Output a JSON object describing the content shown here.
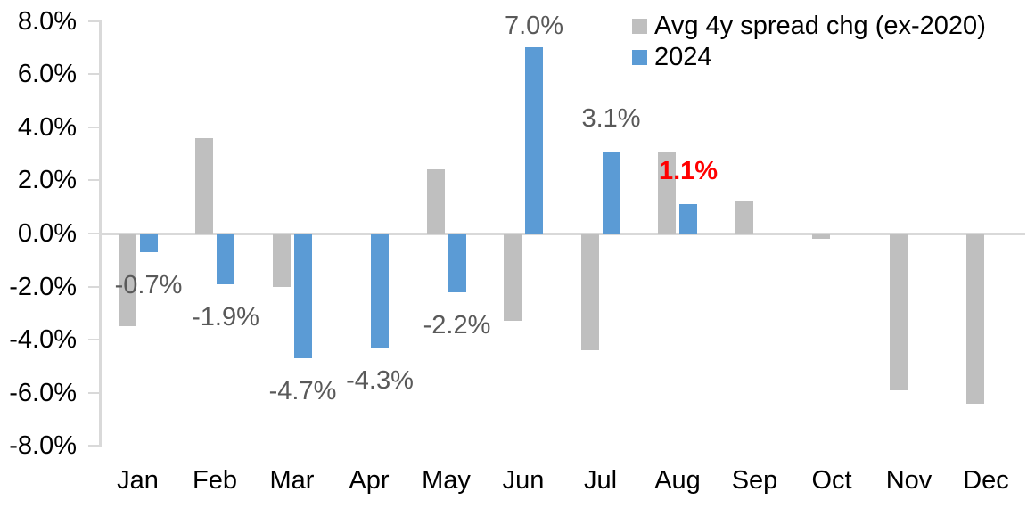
{
  "chart_data": {
    "type": "bar",
    "title": "",
    "categories": [
      "Jan",
      "Feb",
      "Mar",
      "Apr",
      "May",
      "Jun",
      "Jul",
      "Aug",
      "Sep",
      "Oct",
      "Nov",
      "Dec"
    ],
    "series": [
      {
        "name": "Avg 4y spread chg (ex-2020)",
        "color": "#BFBFBF",
        "values": [
          -3.5,
          3.6,
          -2.0,
          0.0,
          2.4,
          -3.3,
          -4.4,
          3.1,
          1.2,
          -0.2,
          -5.9,
          -6.4
        ]
      },
      {
        "name": "2024",
        "color": "#5B9BD5",
        "values": [
          -0.7,
          -1.9,
          -4.7,
          -4.3,
          -2.2,
          7.0,
          3.1,
          1.1,
          null,
          null,
          null,
          null
        ],
        "labels": [
          {
            "text": "-0.7%",
            "color": "#595959",
            "bold": false
          },
          {
            "text": "-1.9%",
            "color": "#595959",
            "bold": false
          },
          {
            "text": "-4.7%",
            "color": "#595959",
            "bold": false
          },
          {
            "text": "-4.3%",
            "color": "#595959",
            "bold": false
          },
          {
            "text": "-2.2%",
            "color": "#595959",
            "bold": false
          },
          {
            "text": "7.0%",
            "color": "#595959",
            "bold": false
          },
          {
            "text": "3.1%",
            "color": "#595959",
            "bold": false
          },
          {
            "text": "1.1%",
            "color": "#FF0000",
            "bold": true
          },
          null,
          null,
          null,
          null
        ]
      }
    ],
    "y_axis": {
      "min": -8,
      "max": 8,
      "step": 2,
      "tick_labels": [
        "8.0%",
        "6.0%",
        "4.0%",
        "2.0%",
        "0.0%",
        "-2.0%",
        "-4.0%",
        "-6.0%",
        "-8.0%"
      ]
    },
    "legend": {
      "position": "top-right"
    },
    "grid": "zero-line-only",
    "xlabel": "",
    "ylabel": ""
  },
  "colors": {
    "background": "#FFFFFF",
    "axis": "#D9D9D9",
    "bar_gray": "#BFBFBF",
    "bar_blue": "#5B9BD5",
    "label_gray": "#595959",
    "label_red": "#FF0000",
    "text": "#000000"
  }
}
